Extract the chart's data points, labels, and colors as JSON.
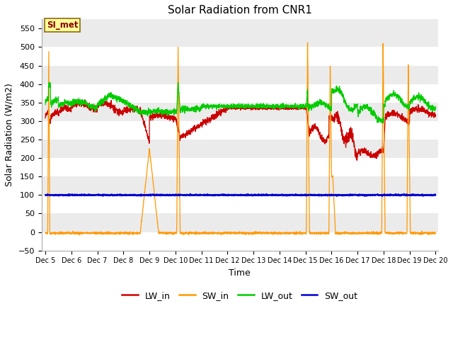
{
  "title": "Solar Radiation from CNR1",
  "xlabel": "Time",
  "ylabel": "Solar Radiation (W/m2)",
  "ylim": [
    -50,
    575
  ],
  "fig_bg_color": "#ffffff",
  "plot_bg_color": "#ebebeb",
  "annotation_label": "SI_met",
  "annotation_color": "#8B0000",
  "annotation_bg": "#FFFF99",
  "annotation_border": "#8B6914",
  "colors": {
    "LW_in": "#cc0000",
    "SW_in": "#ff9900",
    "LW_out": "#00cc00",
    "SW_out": "#0000cc"
  },
  "x_start": 4.85,
  "x_end": 20.1,
  "xtick_positions": [
    5,
    6,
    7,
    8,
    9,
    10,
    11,
    12,
    13,
    14,
    15,
    16,
    17,
    18,
    19,
    20
  ],
  "xtick_labels": [
    "Dec 5",
    "Dec 6",
    "Dec 7",
    "Dec 8",
    "Dec 9",
    "Dec 10",
    "Dec 11",
    "Dec 12",
    "Dec 13",
    "Dec 14",
    "Dec 15",
    "Dec 16",
    "Dec 17",
    "Dec 18",
    "Dec 19",
    "Dec 20"
  ],
  "ytick_positions": [
    -50,
    0,
    50,
    100,
    150,
    200,
    250,
    300,
    350,
    400,
    450,
    500,
    550
  ]
}
